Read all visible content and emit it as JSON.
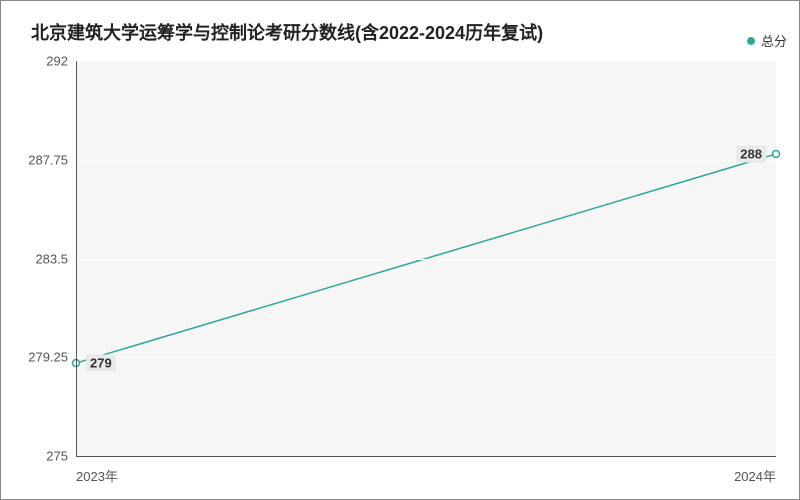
{
  "chart": {
    "type": "line",
    "title": "北京建筑大学运筹学与控制论考研分数线(含2022-2024历年复试)",
    "title_fontsize": 18,
    "title_color": "#222222",
    "background_color": "#ffffff",
    "plot_background_color": "#f6f6f6",
    "border_color": "#888888",
    "grid_color": "#ffffff",
    "axis_line_color": "#555555",
    "tick_label_color": "#555555",
    "tick_fontsize": 13,
    "legend": {
      "label": "总分",
      "marker_color": "#2ca89a",
      "text_color": "#333333"
    },
    "x": {
      "categories": [
        "2023年",
        "2024年"
      ]
    },
    "y": {
      "min": 275,
      "max": 292,
      "ticks": [
        275,
        279.25,
        283.5,
        287.75,
        292
      ],
      "tick_labels": [
        "275",
        "279.25",
        "283.5",
        "287.75",
        "292"
      ]
    },
    "series": {
      "name": "总分",
      "values": [
        279,
        288
      ],
      "point_labels": [
        "279",
        "288"
      ],
      "line_color": "#2ca89a",
      "line_width": 1.5,
      "marker_fill": "#ffffff",
      "marker_stroke": "#2ca89a",
      "marker_radius": 3.5,
      "label_color": "#333333",
      "label_bg": "#e9e9e9"
    }
  }
}
